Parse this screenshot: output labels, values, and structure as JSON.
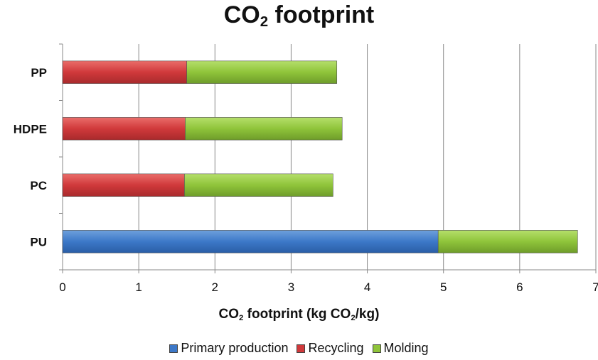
{
  "chart_data": {
    "type": "bar",
    "orientation": "horizontal",
    "stacked": true,
    "title": "CO2 footprint",
    "xlabel": "CO2 footprint (kg CO2/kg)",
    "ylabel": "",
    "categories": [
      "PP",
      "HDPE",
      "PC",
      "PU"
    ],
    "series": [
      {
        "name": "Primary production",
        "color": "#3c78c8",
        "values": [
          0,
          0,
          0,
          4.93
        ]
      },
      {
        "name": "Recycling",
        "color": "#d0393b",
        "values": [
          1.63,
          1.61,
          1.6,
          0
        ]
      },
      {
        "name": "Molding",
        "color": "#8fc43a",
        "values": [
          1.97,
          2.06,
          1.95,
          1.83
        ]
      }
    ],
    "xlim": [
      0,
      7
    ],
    "xticks": [
      "0",
      "1",
      "2",
      "3",
      "4",
      "5",
      "6",
      "7"
    ],
    "grid": true,
    "legend_position": "bottom"
  }
}
